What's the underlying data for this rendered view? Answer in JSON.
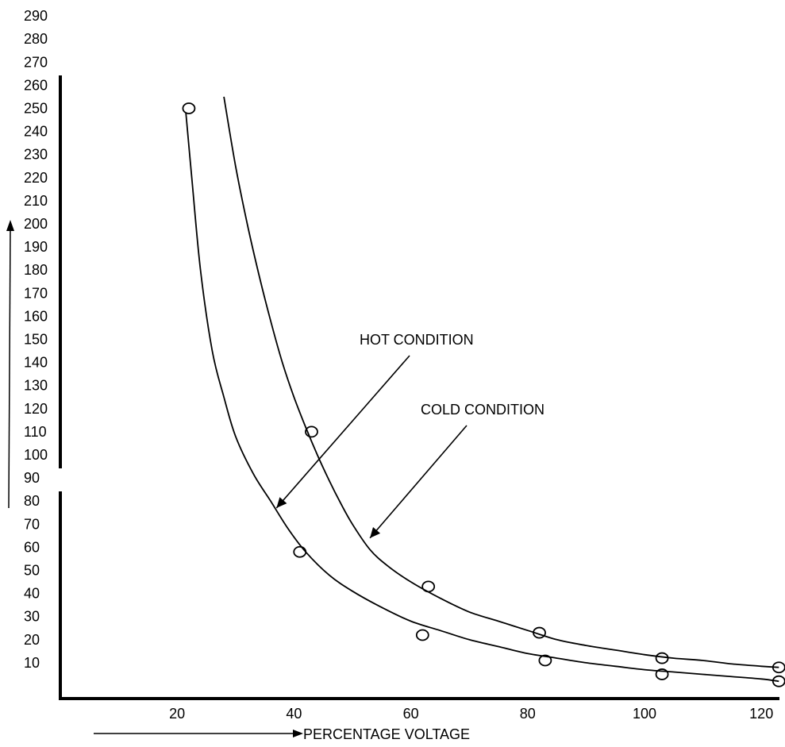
{
  "chart_data": {
    "type": "scatter",
    "title": "",
    "xlabel": "PERCENTAGE VOLTAGE",
    "ylabel": "",
    "xlim": [
      0,
      124
    ],
    "ylim": [
      0,
      290
    ],
    "x_ticks": [
      20,
      40,
      60,
      80,
      100,
      120
    ],
    "y_ticks": [
      10,
      20,
      30,
      40,
      50,
      60,
      70,
      80,
      90,
      100,
      110,
      120,
      130,
      140,
      150,
      160,
      170,
      180,
      190,
      200,
      210,
      220,
      230,
      240,
      250,
      260,
      270,
      280,
      290
    ],
    "grid": false,
    "legend": "none",
    "series": [
      {
        "name": "HOT CONDITION",
        "points": [
          [
            22,
            250
          ],
          [
            41,
            58
          ],
          [
            62,
            22
          ],
          [
            83,
            11
          ],
          [
            103,
            5
          ],
          [
            123,
            2
          ]
        ],
        "curve": [
          [
            21.5,
            248
          ],
          [
            22.5,
            220
          ],
          [
            24,
            180
          ],
          [
            26,
            145
          ],
          [
            28,
            125
          ],
          [
            30,
            108
          ],
          [
            33,
            92
          ],
          [
            36,
            80
          ],
          [
            39,
            68
          ],
          [
            42,
            58
          ],
          [
            46,
            48
          ],
          [
            50,
            41
          ],
          [
            55,
            34
          ],
          [
            60,
            28
          ],
          [
            65,
            24
          ],
          [
            70,
            20
          ],
          [
            75,
            17
          ],
          [
            80,
            14
          ],
          [
            85,
            12
          ],
          [
            90,
            10
          ],
          [
            95,
            8.5
          ],
          [
            100,
            7
          ],
          [
            105,
            6
          ],
          [
            110,
            5
          ],
          [
            115,
            4
          ],
          [
            120,
            3
          ],
          [
            123,
            2
          ]
        ]
      },
      {
        "name": "COLD CONDITION",
        "points": [
          [
            43,
            110
          ],
          [
            63,
            43
          ],
          [
            82,
            23
          ],
          [
            103,
            12
          ],
          [
            123,
            8
          ]
        ],
        "curve": [
          [
            28,
            255
          ],
          [
            30,
            225
          ],
          [
            32,
            200
          ],
          [
            34,
            178
          ],
          [
            36,
            158
          ],
          [
            38,
            140
          ],
          [
            40,
            125
          ],
          [
            42,
            112
          ],
          [
            44,
            100
          ],
          [
            46,
            89
          ],
          [
            48,
            79
          ],
          [
            50,
            70
          ],
          [
            53,
            59
          ],
          [
            56,
            52
          ],
          [
            60,
            45
          ],
          [
            65,
            38
          ],
          [
            70,
            32
          ],
          [
            75,
            28
          ],
          [
            80,
            24
          ],
          [
            85,
            20
          ],
          [
            90,
            17.5
          ],
          [
            95,
            15.5
          ],
          [
            100,
            13.5
          ],
          [
            105,
            12
          ],
          [
            110,
            11
          ],
          [
            115,
            9.5
          ],
          [
            120,
            8.5
          ],
          [
            123,
            8
          ]
        ]
      }
    ],
    "annotations": [
      {
        "text": "HOT CONDITION",
        "series": "HOT CONDITION",
        "arrow_to": [
          37,
          77
        ]
      },
      {
        "text": "COLD CONDITION",
        "series": "COLD CONDITION",
        "arrow_to": [
          53,
          64
        ]
      }
    ]
  }
}
